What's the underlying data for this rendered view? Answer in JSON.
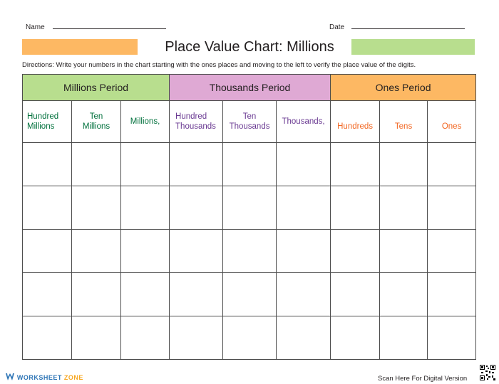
{
  "header": {
    "name_label": "Name",
    "date_label": "Date"
  },
  "title": "Place Value Chart: Millions",
  "directions": "Directions:  Write your numbers in the chart starting with the ones places and moving to the left to verify the place value of the digits.",
  "colors": {
    "orange_bar": "#fdb863",
    "green_bar": "#b8de8e",
    "millions_fill": "#b8de8e",
    "thousands_fill": "#dfa9d4",
    "ones_fill": "#fdb863",
    "millions_text": "#00703c",
    "thousands_text": "#6a3a92",
    "ones_text": "#f26722"
  },
  "periods": [
    {
      "label": "Millions Period"
    },
    {
      "label": "Thousands Period"
    },
    {
      "label": "Ones Period"
    }
  ],
  "places": [
    {
      "line1": "Hundred",
      "line2": "Millions"
    },
    {
      "line1": "Ten",
      "line2": "Millions"
    },
    {
      "line1": "Millions,",
      "line2": ""
    },
    {
      "line1": "Hundred",
      "line2": "Thousands"
    },
    {
      "line1": "Ten",
      "line2": "Thousands"
    },
    {
      "line1": "Thousands,",
      "line2": ""
    },
    {
      "line1": "Hundreds",
      "line2": ""
    },
    {
      "line1": "Tens",
      "line2": ""
    },
    {
      "line1": "Ones",
      "line2": ""
    }
  ],
  "footer": {
    "logo_text": "WORKSHEET",
    "logo_text2": "ZONE",
    "scan_text": "Scan Here For Digital Version",
    "logo_icon": "w-logo-icon",
    "qr_icon": "qr-code-icon"
  }
}
